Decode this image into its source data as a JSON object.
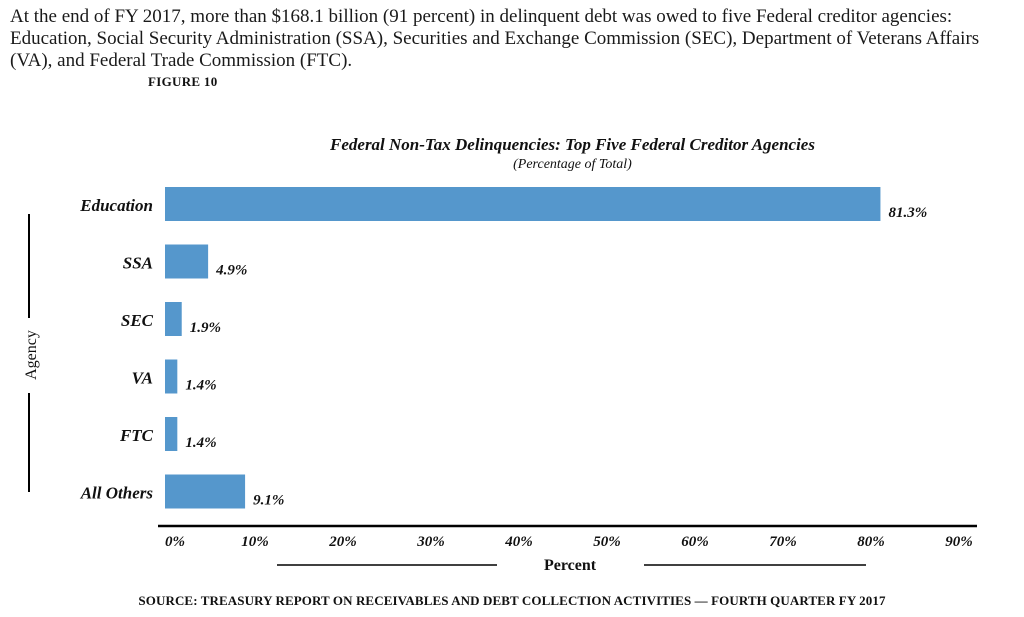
{
  "intro_text": "At the end of FY 2017, more than $168.1 billion (91 percent) in delinquent debt was owed to five Federal creditor agencies: Education, Social Security Administration (SSA), Securities and Exchange Commission (SEC), Department of Veterans Affairs (VA), and Federal Trade Commission (FTC).",
  "figure_label": "FIGURE 10",
  "source": "SOURCE: TREASURY REPORT ON RECEIVABLES AND DEBT COLLECTION ACTIVITIES — FOURTH QUARTER FY 2017",
  "colors": {
    "bar": "#5597CC",
    "axis": "#000000"
  },
  "chart_data": {
    "type": "bar",
    "orientation": "horizontal",
    "title": "Federal Non-Tax Delinquencies: Top Five Federal Creditor Agencies",
    "subtitle": "(Percentage of Total)",
    "xlabel": "Percent",
    "ylabel": "Agency",
    "categories": [
      "Education",
      "SSA",
      "SEC",
      "VA",
      "FTC",
      "All Others"
    ],
    "values": [
      81.3,
      4.9,
      1.9,
      1.4,
      1.4,
      9.1
    ],
    "value_labels": [
      "81.3%",
      "4.9%",
      "1.9%",
      "1.4%",
      "1.4%",
      "9.1%"
    ],
    "xlim": [
      0,
      90
    ],
    "xticks": [
      0,
      10,
      20,
      30,
      40,
      50,
      60,
      70,
      80,
      90
    ],
    "xtick_labels": [
      "0%",
      "10%",
      "20%",
      "30%",
      "40%",
      "50%",
      "60%",
      "70%",
      "80%",
      "90%"
    ],
    "grid": false,
    "legend": "none"
  }
}
